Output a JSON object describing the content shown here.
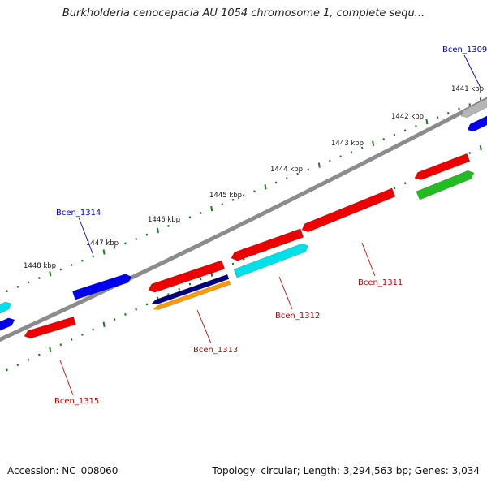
{
  "title": "Burkholderia cenocepacia AU 1054 chromosome 1, complete sequ...",
  "footer": {
    "accession": "Accession: NC_008060",
    "summary": "Topology: circular; Length: 3,294,563 bp; Genes: 3,034"
  },
  "scale_labels": [
    "1441 kbp",
    "1442 kbp",
    "1443 kbp",
    "1444 kbp",
    "1445 kbp",
    "1446 kbp",
    "1447 kbp",
    "1448 kbp"
  ],
  "gene_labels": [
    {
      "text": "Bcen_1309",
      "color": "#0000cc"
    },
    {
      "text": "Bcen_1314",
      "color": "#0000cc"
    },
    {
      "text": "Bcen_1311",
      "color": "#cc0000"
    },
    {
      "text": "Bcen_1312",
      "color": "#cc0000"
    },
    {
      "text": "Bcen_1313",
      "color": "#cc0000"
    },
    {
      "text": "Bcen_1315",
      "color": "#cc0000"
    }
  ],
  "colors": {
    "backbone": "#8c8c8c",
    "ticks": "#1a7a1a",
    "red": "#ee0000",
    "blue": "#0000ee",
    "cyan": "#00e0e8",
    "navy": "#000080",
    "orange": "#ff9900",
    "green": "#22bb22",
    "gray": "#b5b5b5"
  }
}
